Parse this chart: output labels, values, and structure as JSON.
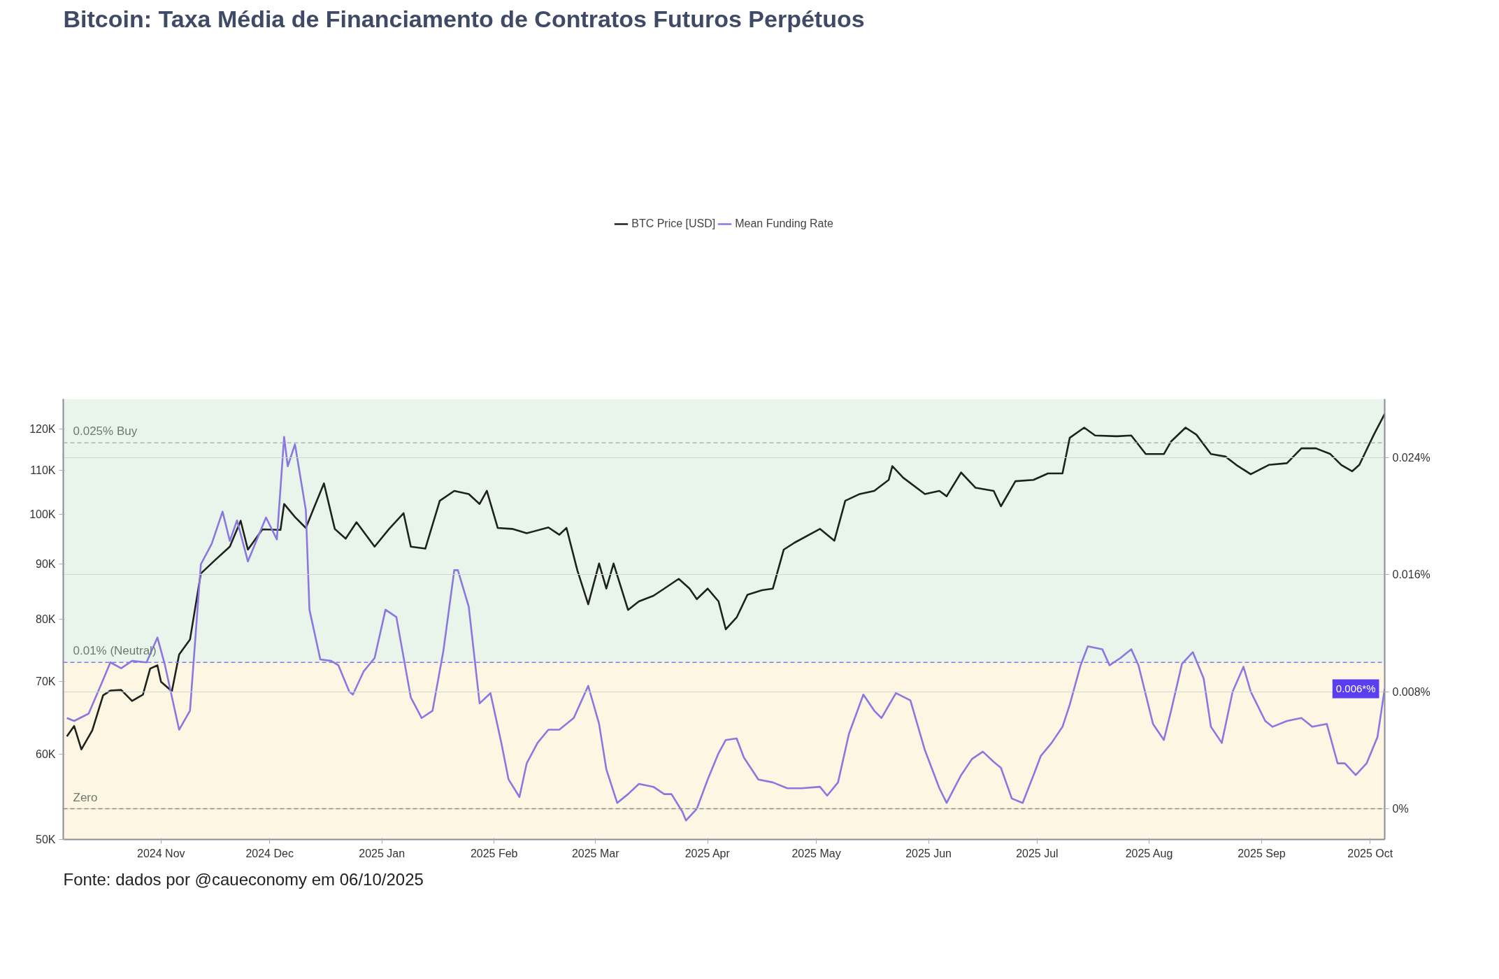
{
  "chart_data": {
    "type": "line",
    "title": "Bitcoin: Taxa Média de Financiamento de Contratos Futuros Perpétuos",
    "annotations": [
      "Fonte: dados por @caueconomy em 06/10/2025",
      "0.006*%"
    ],
    "legend": "top",
    "grid": "y",
    "line_style": "solid",
    "xlim": [
      "2024-10-05",
      "2025-10-05"
    ],
    "xticks": [
      {
        "value": "2024-11-01",
        "label": "2024 Nov"
      },
      {
        "value": "2024-12-01",
        "label": "2024 Dec"
      },
      {
        "value": "2025-01-01",
        "label": "2025 Jan"
      },
      {
        "value": "2025-02-01",
        "label": "2025 Feb"
      },
      {
        "value": "2025-03-01",
        "label": "2025 Mar"
      },
      {
        "value": "2025-04-01",
        "label": "2025 Apr"
      },
      {
        "value": "2025-05-01",
        "label": "2025 May"
      },
      {
        "value": "2025-06-01",
        "label": "2025 Jun"
      },
      {
        "value": "2025-07-01",
        "label": "2025 Jul"
      },
      {
        "value": "2025-08-01",
        "label": "2025 Aug"
      },
      {
        "value": "2025-09-01",
        "label": "2025 Sep"
      },
      {
        "value": "2025-10-01",
        "label": "2025 Oct"
      }
    ],
    "log": "y",
    "ylim": [
      50000,
      128000
    ],
    "yticks": [
      {
        "value": 50000,
        "label": "50K"
      },
      {
        "value": 60000,
        "label": "60K"
      },
      {
        "value": 70000,
        "label": "70K"
      },
      {
        "value": 80000,
        "label": "80K"
      },
      {
        "value": 90000,
        "label": "90K"
      },
      {
        "value": 100000,
        "label": "100K"
      },
      {
        "value": 110000,
        "label": "110K"
      },
      {
        "value": 120000,
        "label": "120K"
      }
    ],
    "y2lim": [
      -0.0021,
      0.028
    ],
    "y2ticks": [
      {
        "value": 0,
        "label": "0%"
      },
      {
        "value": 0.008,
        "label": "0.008%"
      },
      {
        "value": 0.016,
        "label": "0.016%"
      },
      {
        "value": 0.024,
        "label": "0.024%"
      }
    ],
    "bands": [
      {
        "axis": "y2",
        "from": 0.01,
        "to": 0.028,
        "color": "#e9f4ea"
      },
      {
        "axis": "y2",
        "from": -0.0021,
        "to": 0.01,
        "color": "#fdf6e3"
      }
    ],
    "ref_lines": [
      {
        "axis": "y2",
        "value": 0.025,
        "label": "0.025% Buy",
        "color": "#a9b9a9",
        "line_style": "dashed"
      },
      {
        "axis": "y2",
        "value": 0.01,
        "label": "0.01% (Neutral)",
        "color": "#8a78e0",
        "line_style": "dashed"
      },
      {
        "axis": "y2",
        "value": 0,
        "label": "Zero",
        "color": "#8a8a8a",
        "line_style": "dashed"
      }
    ],
    "series": [
      {
        "name": "BTC Price [USD]",
        "color": "#1e221e",
        "x": [
          "2024-10-06",
          "2024-10-08",
          "2024-10-10",
          "2024-10-13",
          "2024-10-16",
          "2024-10-18",
          "2024-10-21",
          "2024-10-24",
          "2024-10-27",
          "2024-10-29",
          "2024-10-31",
          "2024-11-01",
          "2024-11-04",
          "2024-11-06",
          "2024-11-09",
          "2024-11-12",
          "2024-11-16",
          "2024-11-20",
          "2024-11-23",
          "2024-11-25",
          "2024-11-29",
          "2024-12-04",
          "2024-12-05",
          "2024-12-08",
          "2024-12-11",
          "2024-12-13",
          "2024-12-16",
          "2024-12-19",
          "2024-12-22",
          "2024-12-25",
          "2024-12-30",
          "2025-01-03",
          "2025-01-07",
          "2025-01-09",
          "2025-01-13",
          "2025-01-17",
          "2025-01-21",
          "2025-01-25",
          "2025-01-28",
          "2025-01-30",
          "2025-02-02",
          "2025-02-06",
          "2025-02-10",
          "2025-02-16",
          "2025-02-19",
          "2025-02-21",
          "2025-02-24",
          "2025-02-27",
          "2025-03-02",
          "2025-03-04",
          "2025-03-06",
          "2025-03-10",
          "2025-03-13",
          "2025-03-17",
          "2025-03-20",
          "2025-03-24",
          "2025-03-27",
          "2025-03-29",
          "2025-04-01",
          "2025-04-04",
          "2025-04-06",
          "2025-04-09",
          "2025-04-12",
          "2025-04-16",
          "2025-04-19",
          "2025-04-22",
          "2025-04-25",
          "2025-05-02",
          "2025-05-06",
          "2025-05-09",
          "2025-05-13",
          "2025-05-17",
          "2025-05-21",
          "2025-05-22",
          "2025-05-25",
          "2025-05-31",
          "2025-06-04",
          "2025-06-06",
          "2025-06-10",
          "2025-06-14",
          "2025-06-19",
          "2025-06-21",
          "2025-06-25",
          "2025-06-30",
          "2025-07-04",
          "2025-07-08",
          "2025-07-10",
          "2025-07-14",
          "2025-07-17",
          "2025-07-23",
          "2025-07-27",
          "2025-07-31",
          "2025-08-05",
          "2025-08-07",
          "2025-08-11",
          "2025-08-14",
          "2025-08-18",
          "2025-08-22",
          "2025-08-25",
          "2025-08-29",
          "2025-09-03",
          "2025-09-08",
          "2025-09-12",
          "2025-09-16",
          "2025-09-20",
          "2025-09-23",
          "2025-09-26",
          "2025-09-28",
          "2025-10-02",
          "2025-10-05"
        ],
        "values": [
          62300,
          63700,
          60600,
          63100,
          68000,
          68700,
          68800,
          67200,
          68100,
          72000,
          72500,
          70000,
          68600,
          74200,
          76600,
          88200,
          90800,
          93400,
          98700,
          92800,
          96900,
          96800,
          102300,
          99500,
          97200,
          101000,
          106900,
          97000,
          95000,
          98400,
          93400,
          97000,
          100300,
          93400,
          93000,
          103000,
          105200,
          104500,
          102300,
          105200,
          97200,
          97000,
          96100,
          97300,
          95800,
          97200,
          88800,
          82600,
          90100,
          85400,
          90100,
          81600,
          83100,
          84100,
          85400,
          87200,
          85400,
          83500,
          85400,
          83100,
          78300,
          80300,
          84300,
          85100,
          85400,
          92800,
          94200,
          97000,
          94600,
          103000,
          104500,
          105200,
          107700,
          110900,
          108200,
          104500,
          105200,
          104000,
          109400,
          105900,
          105200,
          101800,
          107400,
          107700,
          109200,
          109200,
          117800,
          120400,
          118400,
          118200,
          118400,
          113800,
          113800,
          116900,
          120400,
          118600,
          113800,
          113200,
          111200,
          109000,
          111200,
          111600,
          115200,
          115200,
          113800,
          111200,
          109700,
          111200,
          118600,
          124000
        ]
      },
      {
        "name": "Mean Funding Rate",
        "color": "#8a78e0",
        "axis": "y2",
        "x": [
          "2024-10-06",
          "2024-10-08",
          "2024-10-12",
          "2024-10-16",
          "2024-10-18",
          "2024-10-21",
          "2024-10-24",
          "2024-10-28",
          "2024-10-31",
          "2024-11-02",
          "2024-11-06",
          "2024-11-09",
          "2024-11-12",
          "2024-11-15",
          "2024-11-18",
          "2024-11-20",
          "2024-11-22",
          "2024-11-25",
          "2024-11-30",
          "2024-12-03",
          "2024-12-05",
          "2024-12-06",
          "2024-12-08",
          "2024-12-11",
          "2024-12-12",
          "2024-12-15",
          "2024-12-18",
          "2024-12-20",
          "2024-12-23",
          "2024-12-24",
          "2024-12-27",
          "2024-12-30",
          "2025-01-02",
          "2025-01-05",
          "2025-01-09",
          "2025-01-12",
          "2025-01-15",
          "2025-01-18",
          "2025-01-21",
          "2025-01-22",
          "2025-01-25",
          "2025-01-28",
          "2025-01-31",
          "2025-02-03",
          "2025-02-05",
          "2025-02-08",
          "2025-02-10",
          "2025-02-13",
          "2025-02-16",
          "2025-02-19",
          "2025-02-23",
          "2025-02-27",
          "2025-03-02",
          "2025-03-04",
          "2025-03-07",
          "2025-03-10",
          "2025-03-13",
          "2025-03-17",
          "2025-03-20",
          "2025-03-22",
          "2025-03-25",
          "2025-03-26",
          "2025-03-29",
          "2025-04-01",
          "2025-04-04",
          "2025-04-06",
          "2025-04-09",
          "2025-04-11",
          "2025-04-15",
          "2025-04-19",
          "2025-04-23",
          "2025-04-27",
          "2025-05-02",
          "2025-05-04",
          "2025-05-07",
          "2025-05-10",
          "2025-05-14",
          "2025-05-17",
          "2025-05-19",
          "2025-05-23",
          "2025-05-27",
          "2025-05-31",
          "2025-06-04",
          "2025-06-06",
          "2025-06-10",
          "2025-06-13",
          "2025-06-16",
          "2025-06-19",
          "2025-06-21",
          "2025-06-24",
          "2025-06-27",
          "2025-06-30",
          "2025-07-02",
          "2025-07-05",
          "2025-07-08",
          "2025-07-10",
          "2025-07-13",
          "2025-07-15",
          "2025-07-19",
          "2025-07-21",
          "2025-07-24",
          "2025-07-27",
          "2025-07-29",
          "2025-08-02",
          "2025-08-05",
          "2025-08-07",
          "2025-08-10",
          "2025-08-13",
          "2025-08-16",
          "2025-08-18",
          "2025-08-21",
          "2025-08-24",
          "2025-08-27",
          "2025-08-29",
          "2025-09-02",
          "2025-09-04",
          "2025-09-08",
          "2025-09-12",
          "2025-09-15",
          "2025-09-19",
          "2025-09-22",
          "2025-09-24",
          "2025-09-27",
          "2025-09-30",
          "2025-10-03",
          "2025-10-05"
        ],
        "values": [
          0.0062,
          0.006,
          0.0065,
          0.0088,
          0.01,
          0.0096,
          0.0101,
          0.01,
          0.0117,
          0.0099,
          0.0054,
          0.0067,
          0.0167,
          0.0181,
          0.0203,
          0.0183,
          0.0197,
          0.0169,
          0.0199,
          0.0184,
          0.0254,
          0.0234,
          0.0249,
          0.0204,
          0.0136,
          0.0102,
          0.0101,
          0.0098,
          0.008,
          0.0078,
          0.0094,
          0.0103,
          0.0136,
          0.0131,
          0.0076,
          0.0062,
          0.0067,
          0.0108,
          0.0163,
          0.0163,
          0.0138,
          0.0072,
          0.0079,
          0.0045,
          0.002,
          0.0008,
          0.0031,
          0.0045,
          0.0054,
          0.0054,
          0.0062,
          0.0084,
          0.0058,
          0.0027,
          0.0004,
          0.001,
          0.0017,
          0.0015,
          0.001,
          0.001,
          -0.0002,
          -0.0008,
          0.0,
          0.002,
          0.0038,
          0.0047,
          0.0048,
          0.0035,
          0.002,
          0.0018,
          0.0014,
          0.0014,
          0.0015,
          0.0009,
          0.0018,
          0.0051,
          0.0078,
          0.0067,
          0.0062,
          0.0079,
          0.0074,
          0.004,
          0.0014,
          0.0004,
          0.0023,
          0.0034,
          0.0039,
          0.0032,
          0.0028,
          0.0007,
          0.0004,
          0.0023,
          0.0036,
          0.0045,
          0.0056,
          0.0071,
          0.0098,
          0.0111,
          0.0109,
          0.0098,
          0.0103,
          0.0109,
          0.0098,
          0.0058,
          0.0047,
          0.0067,
          0.0099,
          0.0107,
          0.0089,
          0.0056,
          0.0045,
          0.008,
          0.0097,
          0.008,
          0.006,
          0.0056,
          0.006,
          0.0062,
          0.0056,
          0.0058,
          0.0031,
          0.0031,
          0.0023,
          0.0031,
          0.0049,
          0.0082
        ]
      }
    ]
  }
}
